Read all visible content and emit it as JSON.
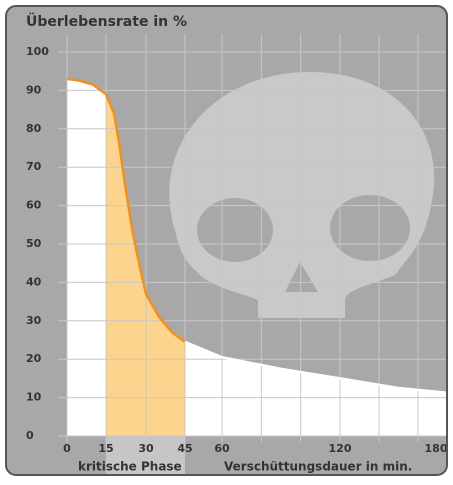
{
  "chart_data": {
    "type": "area",
    "title": "Überlebensrate in %",
    "x_label": "Verschüttungsdauer in min.",
    "highlight": {
      "label": "kritische Phase",
      "range": [
        15,
        45
      ],
      "color": "#fcd48e"
    },
    "x": [
      0,
      5,
      10,
      15,
      18,
      20,
      22,
      25,
      28,
      30,
      35,
      40,
      45,
      60,
      90,
      120,
      150,
      180
    ],
    "series": [
      {
        "color": "#f0901e",
        "values": [
          93,
          92.5,
          91.5,
          89,
          84,
          76,
          66,
          53,
          43,
          37,
          31,
          27,
          24.5,
          null,
          null,
          null,
          null,
          null
        ]
      },
      {
        "color": "#ffffff",
        "values": [
          null,
          null,
          null,
          null,
          null,
          null,
          null,
          null,
          null,
          null,
          null,
          null,
          24.5,
          20.5,
          17.5,
          15,
          12.5,
          11
        ]
      }
    ],
    "ylim": [
      0,
      100
    ],
    "yticks": [
      0,
      10,
      20,
      30,
      40,
      50,
      60,
      70,
      80,
      90,
      100
    ],
    "xticks": [
      0,
      15,
      30,
      45,
      60,
      120,
      180
    ],
    "xgrid": [
      0,
      15,
      30,
      45,
      60,
      80,
      100,
      120,
      140,
      160
    ],
    "grid": true
  }
}
